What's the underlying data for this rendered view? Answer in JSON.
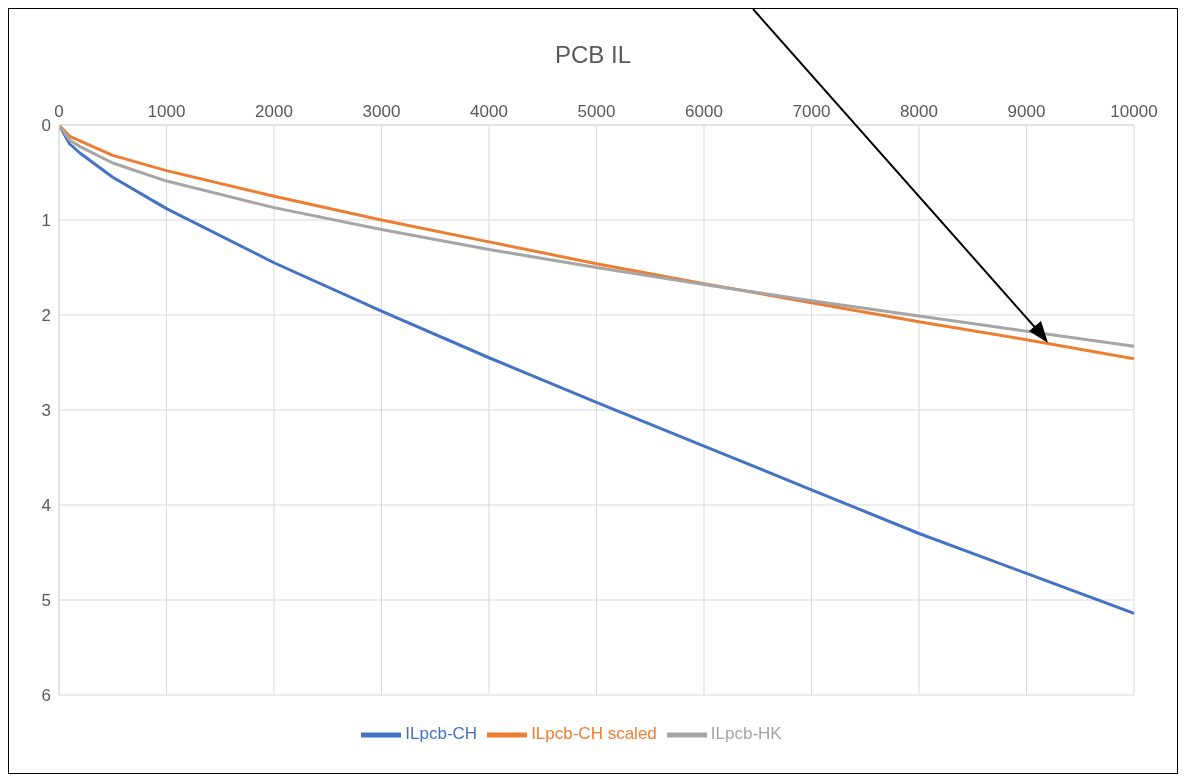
{
  "chart_data": {
    "type": "line",
    "title": "PCB IL",
    "x": [
      0,
      100,
      200,
      500,
      1000,
      2000,
      3000,
      4000,
      5000,
      6000,
      7000,
      8000,
      9000,
      10000
    ],
    "series": [
      {
        "name": "ILpcb-CH",
        "color": "#4472c4",
        "values": [
          0,
          0.2,
          0.3,
          0.55,
          0.88,
          1.45,
          1.96,
          2.45,
          2.92,
          3.38,
          3.84,
          4.3,
          4.72,
          5.14
        ]
      },
      {
        "name": "ILpcb-CH scaled",
        "color": "#ed7d31",
        "values": [
          0,
          0.12,
          0.17,
          0.32,
          0.48,
          0.75,
          1.0,
          1.23,
          1.46,
          1.67,
          1.87,
          2.07,
          2.26,
          2.46
        ]
      },
      {
        "name": "ILpcb-HK",
        "color": "#a5a5a5",
        "values": [
          0,
          0.16,
          0.23,
          0.4,
          0.59,
          0.87,
          1.1,
          1.31,
          1.5,
          1.68,
          1.85,
          2.01,
          2.17,
          2.33
        ]
      }
    ],
    "xlim": [
      0,
      10000
    ],
    "xticks": [
      0,
      1000,
      2000,
      3000,
      4000,
      5000,
      6000,
      7000,
      8000,
      9000,
      10000
    ],
    "ylim": [
      6,
      0
    ],
    "yticks": [
      0,
      1,
      2,
      3,
      4,
      5,
      6
    ],
    "grid": true,
    "legend": "bottom",
    "marker": "none",
    "line_style": "solid"
  }
}
